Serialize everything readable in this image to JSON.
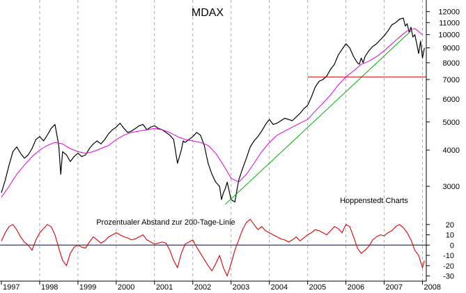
{
  "chart_data": [
    {
      "type": "line",
      "title": "MDAX",
      "annotation": "Hoppenstedt Charts",
      "y_scale": "log",
      "ylim": [
        2500,
        12800
      ],
      "y_ticks": [
        3000,
        4000,
        5000,
        6000,
        7000,
        8000,
        9000,
        10000,
        11000,
        12000
      ],
      "y_tick_labels": [
        "3000",
        "4000",
        "5000",
        "6000",
        "7000",
        "8000",
        "9000",
        "10000",
        "11000",
        "12000"
      ],
      "x_range": [
        1997.0,
        2008.1
      ],
      "x_tick_labels": [
        "1997",
        "1998",
        "1999",
        "2000",
        "2001",
        "2002",
        "2003",
        "2004",
        "2005",
        "2006",
        "2007",
        "2008"
      ],
      "grid": {
        "vertical": true,
        "horizontal": false
      },
      "colors": {
        "index": "#000000",
        "ma200": "#e000e0",
        "trend": "#00b000",
        "support": "#dd0000"
      },
      "series": [
        {
          "key": "index",
          "x": [
            1997.0,
            1997.1,
            1997.2,
            1997.3,
            1997.4,
            1997.5,
            1997.6,
            1997.7,
            1997.8,
            1997.9,
            1998.0,
            1998.1,
            1998.2,
            1998.3,
            1998.4,
            1998.5,
            1998.55,
            1998.6,
            1998.7,
            1998.75,
            1998.8,
            1998.9,
            1999.0,
            1999.1,
            1999.2,
            1999.3,
            1999.4,
            1999.5,
            1999.6,
            1999.7,
            1999.8,
            1999.9,
            2000.0,
            2000.1,
            2000.2,
            2000.3,
            2000.4,
            2000.5,
            2000.6,
            2000.7,
            2000.8,
            2000.9,
            2001.0,
            2001.1,
            2001.2,
            2001.3,
            2001.4,
            2001.5,
            2001.6,
            2001.7,
            2001.75,
            2001.8,
            2001.9,
            2002.0,
            2002.1,
            2002.2,
            2002.3,
            2002.4,
            2002.5,
            2002.6,
            2002.7,
            2002.75,
            2002.8,
            2002.85,
            2002.9,
            2003.0,
            2003.1,
            2003.15,
            2003.2,
            2003.3,
            2003.4,
            2003.5,
            2003.6,
            2003.7,
            2003.8,
            2003.9,
            2004.0,
            2004.1,
            2004.2,
            2004.3,
            2004.4,
            2004.5,
            2004.6,
            2004.7,
            2004.8,
            2004.9,
            2005.0,
            2005.1,
            2005.2,
            2005.3,
            2005.4,
            2005.5,
            2005.6,
            2005.7,
            2005.8,
            2005.9,
            2006.0,
            2006.1,
            2006.2,
            2006.3,
            2006.35,
            2006.4,
            2006.45,
            2006.5,
            2006.6,
            2006.7,
            2006.8,
            2006.9,
            2007.0,
            2007.1,
            2007.2,
            2007.3,
            2007.4,
            2007.5,
            2007.55,
            2007.6,
            2007.65,
            2007.7,
            2007.75,
            2007.8,
            2007.85,
            2007.9,
            2007.95,
            2008.0,
            2008.05
          ],
          "values": [
            2850,
            3150,
            3550,
            3950,
            4100,
            3900,
            3750,
            3850,
            4050,
            4350,
            4450,
            4300,
            4500,
            4750,
            4900,
            4150,
            3300,
            3950,
            3850,
            3750,
            3650,
            3800,
            3900,
            3800,
            3850,
            4050,
            4200,
            4300,
            4200,
            4350,
            4550,
            4700,
            4800,
            4950,
            4750,
            4600,
            4650,
            4750,
            4850,
            4900,
            4700,
            4800,
            4850,
            4750,
            4700,
            4600,
            4500,
            4350,
            3600,
            4000,
            4300,
            4250,
            4350,
            4450,
            4600,
            4500,
            4150,
            3600,
            3300,
            3100,
            3000,
            2700,
            2850,
            2950,
            3100,
            2700,
            2650,
            2900,
            3150,
            3450,
            3750,
            4100,
            4300,
            4450,
            4650,
            4900,
            5100,
            4900,
            4950,
            5050,
            5150,
            5100,
            5050,
            5200,
            5350,
            5550,
            5700,
            6100,
            6600,
            6900,
            7000,
            7200,
            7600,
            7900,
            8500,
            8900,
            9300,
            9000,
            8400,
            8000,
            7900,
            8300,
            8000,
            8400,
            8800,
            9100,
            9300,
            9600,
            9900,
            10300,
            10800,
            11000,
            11300,
            11400,
            10700,
            10900,
            10200,
            10600,
            9800,
            10000,
            9300,
            8600,
            9500,
            8300,
            9000
          ]
        },
        {
          "key": "ma200",
          "x": [
            1997.0,
            1997.2,
            1997.4,
            1997.6,
            1997.8,
            1998.0,
            1998.2,
            1998.4,
            1998.6,
            1998.8,
            1999.0,
            1999.2,
            1999.4,
            1999.6,
            1999.8,
            2000.0,
            2000.2,
            2000.4,
            2000.6,
            2000.8,
            2001.0,
            2001.2,
            2001.4,
            2001.6,
            2001.8,
            2002.0,
            2002.2,
            2002.4,
            2002.6,
            2002.8,
            2003.0,
            2003.2,
            2003.4,
            2003.6,
            2003.8,
            2004.0,
            2004.2,
            2004.4,
            2004.6,
            2004.8,
            2005.0,
            2005.2,
            2005.4,
            2005.6,
            2005.8,
            2006.0,
            2006.2,
            2006.4,
            2006.6,
            2006.8,
            2007.0,
            2007.2,
            2007.4,
            2007.6,
            2007.8,
            2008.0
          ],
          "values": [
            2750,
            3000,
            3300,
            3550,
            3800,
            4000,
            4150,
            4250,
            4200,
            4050,
            3950,
            3900,
            3950,
            4050,
            4150,
            4350,
            4500,
            4600,
            4650,
            4700,
            4750,
            4700,
            4600,
            4450,
            4350,
            4300,
            4250,
            4150,
            3900,
            3550,
            3200,
            3100,
            3300,
            3600,
            3950,
            4250,
            4500,
            4650,
            4800,
            4950,
            5100,
            5450,
            5800,
            6200,
            6700,
            7150,
            7500,
            7900,
            8100,
            8400,
            8800,
            9300,
            9800,
            10300,
            10500,
            10000
          ]
        },
        {
          "key": "trend",
          "x": [
            2002.85,
            2007.7
          ],
          "values": [
            2600,
            10300
          ]
        },
        {
          "key": "support",
          "x": [
            2005.0,
            2008.1
          ],
          "values": [
            7150,
            7150
          ]
        }
      ]
    },
    {
      "type": "line",
      "title": "Prozentualer Abstand zur 200-Tage-Linie",
      "ylim": [
        -33,
        28
      ],
      "y_ticks": [
        20,
        10,
        0,
        -10,
        -20,
        -30
      ],
      "y_tick_labels": [
        "20",
        "10",
        "0",
        "-10",
        "-20",
        "-30"
      ],
      "zero_line": true,
      "colors": {
        "line": "#dd0000",
        "zero": "#000060"
      },
      "series": [
        {
          "key": "deviation",
          "x": [
            1997.0,
            1997.1,
            1997.2,
            1997.3,
            1997.4,
            1997.5,
            1997.6,
            1997.7,
            1997.8,
            1997.9,
            1998.0,
            1998.1,
            1998.2,
            1998.3,
            1998.4,
            1998.5,
            1998.6,
            1998.7,
            1998.8,
            1998.9,
            1999.0,
            1999.1,
            1999.2,
            1999.3,
            1999.4,
            1999.5,
            1999.6,
            1999.7,
            1999.8,
            1999.9,
            2000.0,
            2000.1,
            2000.2,
            2000.3,
            2000.4,
            2000.5,
            2000.6,
            2000.7,
            2000.8,
            2000.9,
            2001.0,
            2001.1,
            2001.2,
            2001.3,
            2001.4,
            2001.5,
            2001.6,
            2001.7,
            2001.8,
            2001.9,
            2002.0,
            2002.1,
            2002.2,
            2002.3,
            2002.4,
            2002.5,
            2002.6,
            2002.7,
            2002.8,
            2002.9,
            2003.0,
            2003.1,
            2003.2,
            2003.3,
            2003.4,
            2003.5,
            2003.6,
            2003.7,
            2003.8,
            2003.9,
            2004.0,
            2004.1,
            2004.2,
            2004.3,
            2004.4,
            2004.5,
            2004.6,
            2004.7,
            2004.8,
            2004.9,
            2005.0,
            2005.1,
            2005.2,
            2005.3,
            2005.4,
            2005.5,
            2005.6,
            2005.7,
            2005.8,
            2005.9,
            2006.0,
            2006.1,
            2006.2,
            2006.3,
            2006.4,
            2006.5,
            2006.6,
            2006.7,
            2006.8,
            2006.9,
            2007.0,
            2007.1,
            2007.2,
            2007.3,
            2007.4,
            2007.5,
            2007.6,
            2007.7,
            2007.8,
            2007.9,
            2008.0,
            2008.05
          ],
          "values": [
            4,
            12,
            18,
            20,
            15,
            8,
            3,
            0,
            -5,
            5,
            12,
            16,
            20,
            18,
            10,
            -3,
            -15,
            -20,
            -8,
            -2,
            0,
            -2,
            -3,
            3,
            8,
            5,
            2,
            4,
            8,
            10,
            12,
            10,
            8,
            7,
            5,
            6,
            8,
            10,
            5,
            3,
            1,
            2,
            3,
            2,
            -5,
            -15,
            -22,
            -8,
            1,
            3,
            5,
            -2,
            -8,
            -14,
            -20,
            -25,
            -18,
            -10,
            -22,
            -30,
            -18,
            -5,
            5,
            15,
            22,
            25,
            20,
            15,
            18,
            14,
            12,
            10,
            8,
            6,
            5,
            3,
            5,
            8,
            4,
            7,
            10,
            12,
            15,
            14,
            12,
            10,
            14,
            18,
            16,
            12,
            20,
            18,
            8,
            -3,
            -8,
            -5,
            -1,
            5,
            8,
            10,
            9,
            12,
            14,
            18,
            20,
            17,
            12,
            5,
            -5,
            -10,
            -22,
            -15
          ]
        }
      ]
    }
  ]
}
